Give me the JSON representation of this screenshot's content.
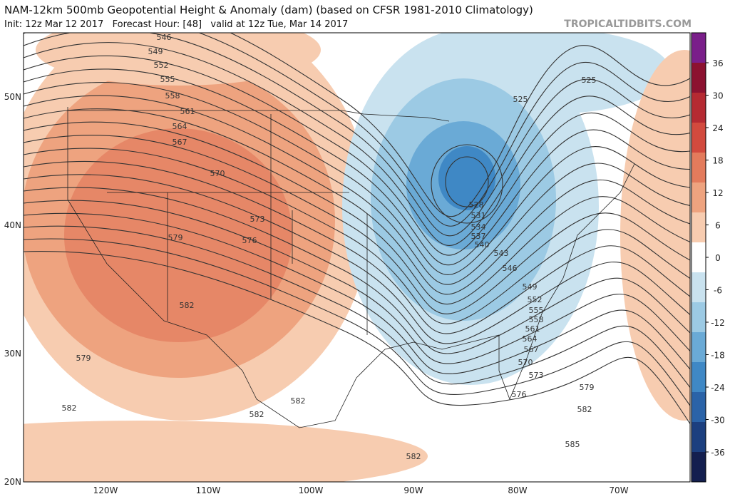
{
  "header": {
    "title": "NAM-12km 500mb Geopotential Height & Anomaly (dam) (based on CFSR 1981-2010 Climatology)",
    "init": "Init: 12z Mar 12 2017   Forecast Hour: [48]   valid at 12z Tue, Mar 14 2017",
    "brand": "TROPICALTIDBITS.COM"
  },
  "axes": {
    "lat": [
      "50N",
      "40N",
      "30N",
      "20N"
    ],
    "lon": [
      "120W",
      "110W",
      "100W",
      "90W",
      "80W",
      "70W"
    ]
  },
  "colorbar": {
    "ticks": [
      36,
      30,
      24,
      18,
      12,
      6,
      0,
      -6,
      -12,
      -18,
      -24,
      -30,
      -36
    ],
    "colors": [
      "#7a1f8a",
      "#8c1230",
      "#b52a32",
      "#d24a3e",
      "#e37b5c",
      "#eea37f",
      "#f7ccb0",
      "#ffffff",
      "#c9e2ef",
      "#9ccae4",
      "#6aaad6",
      "#3f88c5",
      "#2a63a8",
      "#1c3f7f",
      "#141f4f"
    ]
  },
  "contour_labels": [
    "546",
    "549",
    "552",
    "555",
    "558",
    "561",
    "564",
    "567",
    "570",
    "573",
    "576",
    "579",
    "582",
    "579",
    "582",
    "582",
    "582",
    "582",
    "525",
    "525",
    "528",
    "531",
    "534",
    "537",
    "540",
    "543",
    "546",
    "549",
    "552",
    "555",
    "558",
    "561",
    "564",
    "567",
    "570",
    "573",
    "576",
    "579",
    "582",
    "585"
  ]
}
